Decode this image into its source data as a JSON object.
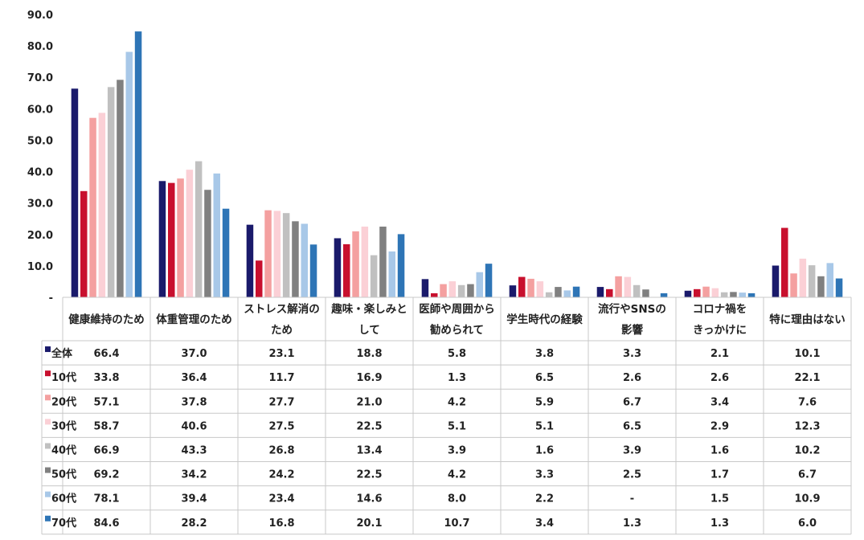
{
  "chart_data": {
    "type": "bar",
    "ylim": [
      0,
      90
    ],
    "yticks": [
      "-",
      "10.0",
      "20.0",
      "30.0",
      "40.0",
      "50.0",
      "60.0",
      "70.0",
      "80.0",
      "90.0"
    ],
    "grid": false,
    "legend": "table-left",
    "categories": [
      [
        "健康維持のため"
      ],
      [
        "体重管理のため"
      ],
      [
        "ストレス解消の",
        "ため"
      ],
      [
        "趣味・楽しみと",
        "して"
      ],
      [
        "医師や周囲から",
        "勧められて"
      ],
      [
        "学生時代の経験"
      ],
      [
        "流行やSNSの",
        "影響"
      ],
      [
        "コロナ禍を",
        "きっかけに"
      ],
      [
        "特に理由はない"
      ]
    ],
    "series": [
      {
        "name": "全体",
        "color": "#1a1a6b",
        "values": [
          66.4,
          37.0,
          23.1,
          18.8,
          5.8,
          3.8,
          3.3,
          2.1,
          10.1
        ],
        "labels": [
          "66.4",
          "37.0",
          "23.1",
          "18.8",
          "5.8",
          "3.8",
          "3.3",
          "2.1",
          "10.1"
        ]
      },
      {
        "name": "10代",
        "color": "#c8102e",
        "values": [
          33.8,
          36.4,
          11.7,
          16.9,
          1.3,
          6.5,
          2.6,
          2.6,
          22.1
        ],
        "labels": [
          "33.8",
          "36.4",
          "11.7",
          "16.9",
          "1.3",
          "6.5",
          "2.6",
          "2.6",
          "22.1"
        ]
      },
      {
        "name": "20代",
        "color": "#f4a0a0",
        "values": [
          57.1,
          37.8,
          27.7,
          21.0,
          4.2,
          5.9,
          6.7,
          3.4,
          7.6
        ],
        "labels": [
          "57.1",
          "37.8",
          "27.7",
          "21.0",
          "4.2",
          "5.9",
          "6.7",
          "3.4",
          "7.6"
        ]
      },
      {
        "name": "30代",
        "color": "#fbd0d6",
        "values": [
          58.7,
          40.6,
          27.5,
          22.5,
          5.1,
          5.1,
          6.5,
          2.9,
          12.3
        ],
        "labels": [
          "58.7",
          "40.6",
          "27.5",
          "22.5",
          "5.1",
          "5.1",
          "6.5",
          "2.9",
          "12.3"
        ]
      },
      {
        "name": "40代",
        "color": "#c0c0c0",
        "values": [
          66.9,
          43.3,
          26.8,
          13.4,
          3.9,
          1.6,
          3.9,
          1.6,
          10.2
        ],
        "labels": [
          "66.9",
          "43.3",
          "26.8",
          "13.4",
          "3.9",
          "1.6",
          "3.9",
          "1.6",
          "10.2"
        ]
      },
      {
        "name": "50代",
        "color": "#808080",
        "values": [
          69.2,
          34.2,
          24.2,
          22.5,
          4.2,
          3.3,
          2.5,
          1.7,
          6.7
        ],
        "labels": [
          "69.2",
          "34.2",
          "24.2",
          "22.5",
          "4.2",
          "3.3",
          "2.5",
          "1.7",
          "6.7"
        ]
      },
      {
        "name": "60代",
        "color": "#a8c8e8",
        "values": [
          78.1,
          39.4,
          23.4,
          14.6,
          8.0,
          2.2,
          null,
          1.5,
          10.9
        ],
        "labels": [
          "78.1",
          "39.4",
          "23.4",
          "14.6",
          "8.0",
          "2.2",
          "-",
          "1.5",
          "10.9"
        ]
      },
      {
        "name": "70代",
        "color": "#2e75b6",
        "values": [
          84.6,
          28.2,
          16.8,
          20.1,
          10.7,
          3.4,
          1.3,
          1.3,
          6.0
        ],
        "labels": [
          "84.6",
          "28.2",
          "16.8",
          "20.1",
          "10.7",
          "3.4",
          "1.3",
          "1.3",
          "6.0"
        ]
      }
    ]
  }
}
